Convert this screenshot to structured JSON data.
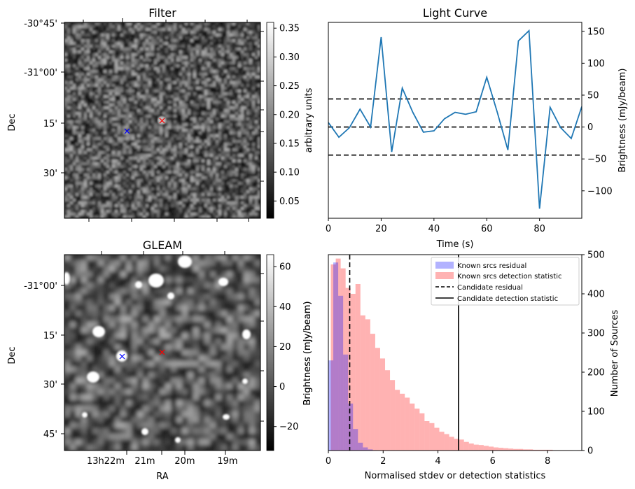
{
  "chart_data": [
    {
      "type": "heatmap",
      "title": "Filter",
      "ylabel": "Dec",
      "ytick_labels": [
        "-30°45'",
        "-31°00'",
        "15'",
        "30'"
      ],
      "colorbar": {
        "label": "arbitrary units",
        "range": [
          0.02,
          0.36
        ],
        "tick_labels": [
          "0.05",
          "0.10",
          "0.15",
          "0.20",
          "0.25",
          "0.30",
          "0.35"
        ],
        "colormap": "gray"
      },
      "markers": [
        {
          "symbol": "x",
          "color": "#0000ff"
        },
        {
          "symbol": "x",
          "color": "#ff0000"
        }
      ]
    },
    {
      "type": "line",
      "title": "Light Curve",
      "xlabel": "Time (s)",
      "ylabel": "Brightness (mJy/beam)",
      "xlim": [
        0,
        96
      ],
      "ylim": [
        -143,
        164
      ],
      "x_tick_labels": [
        "0",
        "20",
        "40",
        "60",
        "80"
      ],
      "y_tick_labels": [
        "-100",
        "-50",
        "0",
        "50",
        "100",
        "150"
      ],
      "series": [
        {
          "color": "#1f77b4",
          "x": [
            0,
            4,
            8,
            12,
            16,
            20,
            24,
            28,
            32,
            36,
            40,
            44,
            48,
            52,
            56,
            60,
            64,
            68,
            72,
            76,
            80,
            84,
            88,
            92,
            96
          ],
          "values": [
            7,
            -16,
            -1,
            28,
            0,
            141,
            -39,
            61,
            23,
            -8,
            -6,
            13,
            23,
            20,
            24,
            78,
            23,
            -36,
            135,
            151,
            -128,
            31,
            -1,
            -18,
            32
          ]
        }
      ],
      "hlines": [
        {
          "y": 44,
          "style": "dashed",
          "color": "#000000"
        },
        {
          "y": 0,
          "style": "dashed",
          "color": "#000000"
        },
        {
          "y": -44,
          "style": "dashed",
          "color": "#000000"
        }
      ]
    },
    {
      "type": "heatmap",
      "title": "GLEAM",
      "xlabel": "RA",
      "ylabel": "Dec",
      "xtick_labels": [
        "13h22m",
        "21m",
        "20m",
        "19m"
      ],
      "ytick_labels": [
        "-31°00'",
        "15'",
        "30'",
        "45'"
      ],
      "colorbar": {
        "label": "Brightness (mJy/beam)",
        "range": [
          -32,
          66
        ],
        "tick_labels": [
          "-20",
          "0",
          "20",
          "40",
          "60"
        ],
        "colormap": "gray"
      },
      "markers": [
        {
          "symbol": "x",
          "color": "#0000ff"
        },
        {
          "symbol": "x",
          "color": "#ff0000"
        }
      ]
    },
    {
      "type": "bar",
      "xlabel": "Normalised stdev or detection statistics",
      "ylabel": "Brightness (mJy/beam)",
      "ylabel_right": "Number of Sources",
      "xlim": [
        0,
        9.25
      ],
      "ylim": [
        0,
        500
      ],
      "x_tick_labels": [
        "0",
        "2",
        "4",
        "6",
        "8"
      ],
      "y_tick_labels": [
        "0",
        "100",
        "200",
        "300",
        "400",
        "500"
      ],
      "bin_width": 0.18,
      "series": [
        {
          "name": "Known srcs residual",
          "color": "#0000ff",
          "bin_start": 0,
          "values": [
            230,
            480,
            395,
            245,
            120,
            55,
            20,
            8,
            3,
            1
          ]
        },
        {
          "name": "Known srcs detection statistic",
          "color": "#ff0000",
          "bin_start": 0.09,
          "values": [
            475,
            490,
            465,
            415,
            400,
            425,
            345,
            335,
            298,
            262,
            235,
            205,
            180,
            155,
            145,
            135,
            120,
            107,
            95,
            75,
            70,
            58,
            48,
            42,
            35,
            30,
            28,
            22,
            18,
            15,
            14,
            12,
            10,
            8,
            7,
            6,
            5,
            4,
            4,
            3,
            3,
            2,
            2,
            2,
            2,
            1,
            1,
            1,
            1,
            0,
            1
          ]
        }
      ],
      "vlines": [
        {
          "name": "Candidate residual",
          "x": 0.78,
          "style": "dashed",
          "color": "#000000"
        },
        {
          "name": "Candidate detection statistic",
          "x": 4.75,
          "style": "solid",
          "color": "#000000"
        }
      ],
      "legend_position": "top-right"
    }
  ]
}
